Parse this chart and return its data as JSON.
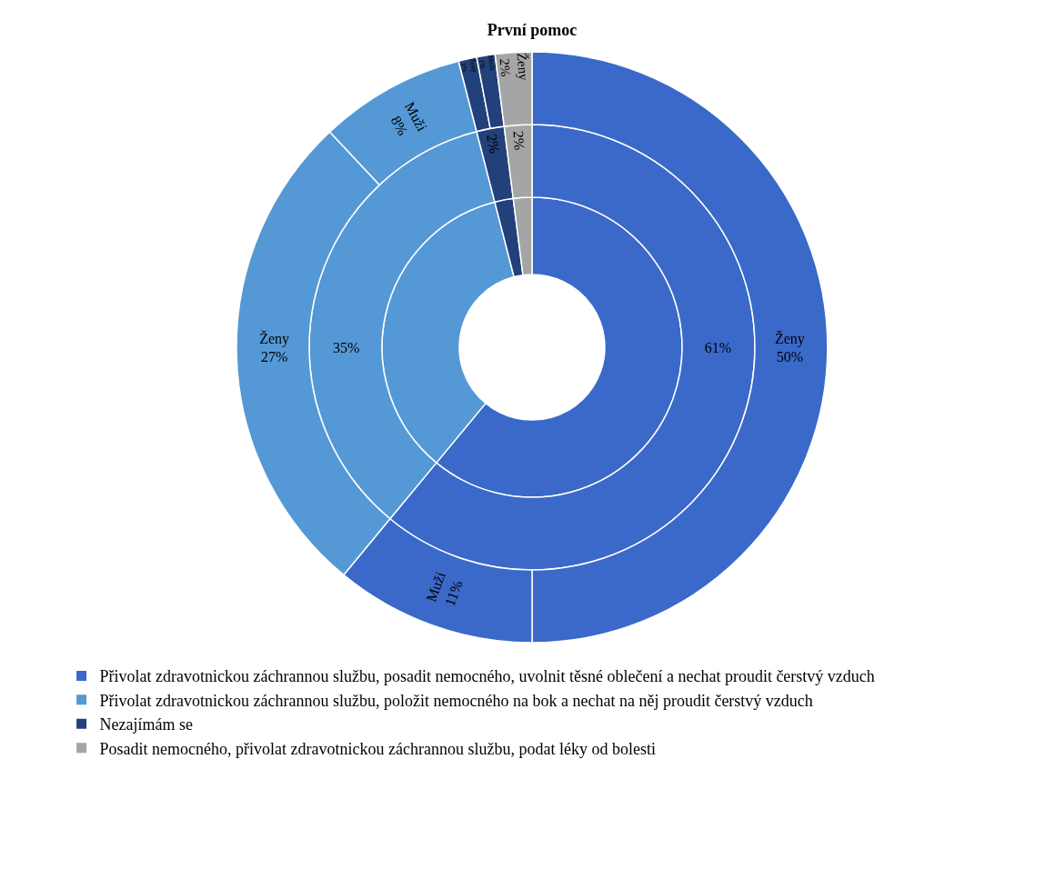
{
  "chart_data": {
    "type": "donut",
    "title": "První pomoc",
    "legend": "bottom",
    "categories": [
      "Přivolat zdravotnickou záchrannou službu, posadit nemocného, uvolnit těsné oblečení a nechat proudit čerstvý vzduch",
      null,
      "Přivolat zdravotnickou záchrannou službu, položit nemocného na bok a nechat na něj proudit čerstvý vzduch",
      null,
      "Nezajímám se",
      null,
      "Posadit nemocného, přivolat zdravotnickou záchrannou službu, podat léky od bolesti"
    ],
    "colors": [
      "#3a69c9",
      "#3a69c9",
      "#5598d6",
      "#5598d6",
      "#22407a",
      "#22407a",
      "#a5a5a5"
    ],
    "series": [
      {
        "values": [
          61,
          null,
          35,
          null,
          2,
          null,
          2
        ]
      },
      {
        "values": [
          61,
          null,
          35,
          null,
          2,
          null,
          2
        ],
        "value_labels": [
          "61%",
          null,
          "35%",
          null,
          "2%",
          null,
          "2%"
        ]
      },
      {
        "values": [
          50,
          11,
          27,
          8,
          1,
          1,
          2
        ],
        "value_labels": [
          "Ženy 50%",
          "Muži 11%",
          "Ženy 27%",
          "Muži 8%",
          "Ženy 1%",
          "Muži 1%",
          "Ženy 2%"
        ]
      }
    ]
  }
}
